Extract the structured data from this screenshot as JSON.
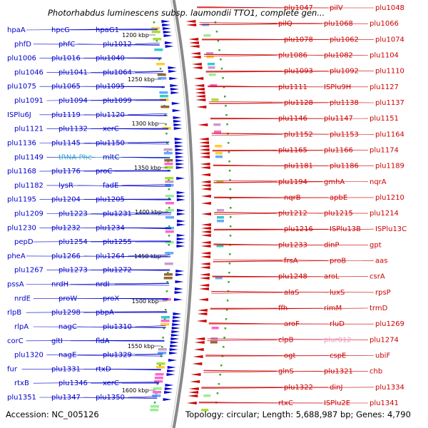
{
  "title": "Photorhabdus luminescens subsp. laumondii TTO1, complete gen...",
  "accession": "Accession: NC_005126",
  "summary": "Topology: circular; Length: 5,688,987 bp; Genes: 4,790",
  "colors": {
    "forward": "#0000cc",
    "reverse": "#cc0000",
    "trna": "#33aacc",
    "pseudo": "#ee99cc",
    "backbone": "#888888"
  },
  "kbp_marks": [
    "1200 kbp",
    "1250 kbp",
    "1300 kbp",
    "1350 kbp",
    "1400 kbp",
    "1450 kbp",
    "1500 kbp",
    "1550 kbp",
    "1600 kbp"
  ],
  "left_labels": [
    {
      "text": "hpaA",
      "kind": "forward"
    },
    {
      "text": "hpcG",
      "kind": "forward"
    },
    {
      "text": "hpaG1",
      "kind": "forward"
    },
    {
      "text": "phfD",
      "kind": "forward"
    },
    {
      "text": "phfC",
      "kind": "forward"
    },
    {
      "text": "plu1012",
      "kind": "forward"
    },
    {
      "text": "plu1006",
      "kind": "forward"
    },
    {
      "text": "plu1016",
      "kind": "forward"
    },
    {
      "text": "plu1040",
      "kind": "forward"
    },
    {
      "text": "plu1046",
      "kind": "forward"
    },
    {
      "text": "plu1041",
      "kind": "forward"
    },
    {
      "text": "plu1064",
      "kind": "forward"
    },
    {
      "text": "plu1075",
      "kind": "forward"
    },
    {
      "text": "plu1065",
      "kind": "forward"
    },
    {
      "text": "plu1095",
      "kind": "forward"
    },
    {
      "text": "plu1091",
      "kind": "forward"
    },
    {
      "text": "plu1094",
      "kind": "forward"
    },
    {
      "text": "plu1099",
      "kind": "forward"
    },
    {
      "text": "ISPlu6J",
      "kind": "forward"
    },
    {
      "text": "plu1119",
      "kind": "forward"
    },
    {
      "text": "plu1120",
      "kind": "forward"
    },
    {
      "text": "plu1121",
      "kind": "forward"
    },
    {
      "text": "plu1132",
      "kind": "forward"
    },
    {
      "text": "xerC",
      "kind": "forward"
    },
    {
      "text": "plu1136",
      "kind": "forward"
    },
    {
      "text": "plu1145",
      "kind": "forward"
    },
    {
      "text": "plu1150",
      "kind": "forward"
    },
    {
      "text": "plu1149",
      "kind": "forward"
    },
    {
      "text": "tRNA-Phe",
      "kind": "trna"
    },
    {
      "text": "mltC",
      "kind": "forward"
    },
    {
      "text": "plu1168",
      "kind": "forward"
    },
    {
      "text": "plu1176",
      "kind": "forward"
    },
    {
      "text": "proC",
      "kind": "forward"
    },
    {
      "text": "plu1182",
      "kind": "forward"
    },
    {
      "text": "lysR",
      "kind": "forward"
    },
    {
      "text": "fadE",
      "kind": "forward"
    },
    {
      "text": "plu1195",
      "kind": "forward"
    },
    {
      "text": "plu1204",
      "kind": "forward"
    },
    {
      "text": "plu1205",
      "kind": "forward"
    },
    {
      "text": "plu1209",
      "kind": "forward"
    },
    {
      "text": "plu1223",
      "kind": "forward"
    },
    {
      "text": "plu1231",
      "kind": "forward"
    },
    {
      "text": "plu1230",
      "kind": "forward"
    },
    {
      "text": "plu1232",
      "kind": "forward"
    },
    {
      "text": "plu1234",
      "kind": "forward"
    },
    {
      "text": "pepD",
      "kind": "forward"
    },
    {
      "text": "plu1254",
      "kind": "forward"
    },
    {
      "text": "plu1255",
      "kind": "forward"
    },
    {
      "text": "pheA",
      "kind": "forward"
    },
    {
      "text": "plu1266",
      "kind": "forward"
    },
    {
      "text": "plu1264",
      "kind": "forward"
    },
    {
      "text": "plu1267",
      "kind": "forward"
    },
    {
      "text": "plu1273",
      "kind": "forward"
    },
    {
      "text": "plu1272",
      "kind": "forward"
    },
    {
      "text": "pssA",
      "kind": "forward"
    },
    {
      "text": "nrdH",
      "kind": "forward"
    },
    {
      "text": "nrdI",
      "kind": "forward"
    },
    {
      "text": "nrdE",
      "kind": "forward"
    },
    {
      "text": "proW",
      "kind": "forward"
    },
    {
      "text": "proX",
      "kind": "forward"
    },
    {
      "text": "rlpB",
      "kind": "forward"
    },
    {
      "text": "plu1298",
      "kind": "forward"
    },
    {
      "text": "pbpA",
      "kind": "forward"
    },
    {
      "text": "rlpA",
      "kind": "forward"
    },
    {
      "text": "nagC",
      "kind": "forward"
    },
    {
      "text": "plu1310",
      "kind": "forward"
    },
    {
      "text": "corC",
      "kind": "forward"
    },
    {
      "text": "gltI",
      "kind": "forward"
    },
    {
      "text": "fldA",
      "kind": "forward"
    },
    {
      "text": "plu1320",
      "kind": "forward"
    },
    {
      "text": "nagE",
      "kind": "forward"
    },
    {
      "text": "plu1329",
      "kind": "forward"
    },
    {
      "text": "fur",
      "kind": "forward"
    },
    {
      "text": "plu1331",
      "kind": "forward"
    },
    {
      "text": "rtxD",
      "kind": "forward"
    },
    {
      "text": "rtxB",
      "kind": "forward"
    },
    {
      "text": "plu1346",
      "kind": "forward"
    },
    {
      "text": "xerC",
      "kind": "forward"
    },
    {
      "text": "plu1351",
      "kind": "forward"
    },
    {
      "text": "plu1347",
      "kind": "forward"
    },
    {
      "text": "plu1350",
      "kind": "forward"
    }
  ],
  "right_labels": [
    {
      "text": "plu1047",
      "kind": "reverse"
    },
    {
      "text": "pilV",
      "kind": "reverse"
    },
    {
      "text": "plu1048",
      "kind": "reverse"
    },
    {
      "text": "pilQ",
      "kind": "reverse"
    },
    {
      "text": "plu1068",
      "kind": "reverse"
    },
    {
      "text": "plu1066",
      "kind": "reverse"
    },
    {
      "text": "plu1078",
      "kind": "reverse"
    },
    {
      "text": "plu1062",
      "kind": "reverse"
    },
    {
      "text": "plu1074",
      "kind": "reverse"
    },
    {
      "text": "plu1086",
      "kind": "reverse"
    },
    {
      "text": "plu1082",
      "kind": "reverse"
    },
    {
      "text": "plu1104",
      "kind": "reverse"
    },
    {
      "text": "plu1093",
      "kind": "reverse"
    },
    {
      "text": "plu1092",
      "kind": "reverse"
    },
    {
      "text": "plu1110",
      "kind": "reverse"
    },
    {
      "text": "plu1111",
      "kind": "reverse"
    },
    {
      "text": "ISPlu9H",
      "kind": "reverse"
    },
    {
      "text": "plu1127",
      "kind": "reverse"
    },
    {
      "text": "plu1128",
      "kind": "reverse"
    },
    {
      "text": "plu1138",
      "kind": "reverse"
    },
    {
      "text": "plu1137",
      "kind": "reverse"
    },
    {
      "text": "plu1146",
      "kind": "reverse"
    },
    {
      "text": "plu1147",
      "kind": "reverse"
    },
    {
      "text": "plu1151",
      "kind": "reverse"
    },
    {
      "text": "plu1152",
      "kind": "reverse"
    },
    {
      "text": "plu1153",
      "kind": "reverse"
    },
    {
      "text": "plu1164",
      "kind": "reverse"
    },
    {
      "text": "plu1165",
      "kind": "reverse"
    },
    {
      "text": "plu1166",
      "kind": "reverse"
    },
    {
      "text": "plu1174",
      "kind": "reverse"
    },
    {
      "text": "plu1181",
      "kind": "reverse"
    },
    {
      "text": "plu1186",
      "kind": "reverse"
    },
    {
      "text": "plu1189",
      "kind": "reverse"
    },
    {
      "text": "plu1194",
      "kind": "reverse"
    },
    {
      "text": "gmhA",
      "kind": "reverse"
    },
    {
      "text": "nqrA",
      "kind": "reverse"
    },
    {
      "text": "nqrB",
      "kind": "reverse"
    },
    {
      "text": "apbE",
      "kind": "reverse"
    },
    {
      "text": "plu1210",
      "kind": "reverse"
    },
    {
      "text": "plu1212",
      "kind": "reverse"
    },
    {
      "text": "plu1215",
      "kind": "reverse"
    },
    {
      "text": "plu1214",
      "kind": "reverse"
    },
    {
      "text": "plu1216",
      "kind": "reverse"
    },
    {
      "text": "ISPlu13B",
      "kind": "reverse"
    },
    {
      "text": "ISPlu13C",
      "kind": "reverse"
    },
    {
      "text": "plu1233",
      "kind": "reverse"
    },
    {
      "text": "dinP",
      "kind": "reverse"
    },
    {
      "text": "gpt",
      "kind": "reverse"
    },
    {
      "text": "frsA",
      "kind": "reverse"
    },
    {
      "text": "proB",
      "kind": "reverse"
    },
    {
      "text": "aas",
      "kind": "reverse"
    },
    {
      "text": "plu1248",
      "kind": "reverse"
    },
    {
      "text": "aroL",
      "kind": "reverse"
    },
    {
      "text": "csrA",
      "kind": "reverse"
    },
    {
      "text": "alaS",
      "kind": "reverse"
    },
    {
      "text": "luxS",
      "kind": "reverse"
    },
    {
      "text": "rpsP",
      "kind": "reverse"
    },
    {
      "text": "ffh",
      "kind": "reverse"
    },
    {
      "text": "rimM",
      "kind": "reverse"
    },
    {
      "text": "trmD",
      "kind": "reverse"
    },
    {
      "text": "aroF",
      "kind": "reverse"
    },
    {
      "text": "rluD",
      "kind": "reverse"
    },
    {
      "text": "plu1269",
      "kind": "reverse"
    },
    {
      "text": "clpB",
      "kind": "reverse"
    },
    {
      "text": "plur012",
      "kind": "pseudo"
    },
    {
      "text": "plu1274",
      "kind": "reverse"
    },
    {
      "text": "ogt",
      "kind": "reverse"
    },
    {
      "text": "cspE",
      "kind": "reverse"
    },
    {
      "text": "ubiF",
      "kind": "reverse"
    },
    {
      "text": "glnS",
      "kind": "reverse"
    },
    {
      "text": "plu1321",
      "kind": "reverse"
    },
    {
      "text": "chb",
      "kind": "reverse"
    },
    {
      "text": "plu1322",
      "kind": "reverse"
    },
    {
      "text": "dinJ",
      "kind": "reverse"
    },
    {
      "text": "plu1334",
      "kind": "reverse"
    },
    {
      "text": "rtxC",
      "kind": "reverse"
    },
    {
      "text": "ISPlu2E",
      "kind": "reverse"
    },
    {
      "text": "plu1341",
      "kind": "reverse"
    }
  ]
}
